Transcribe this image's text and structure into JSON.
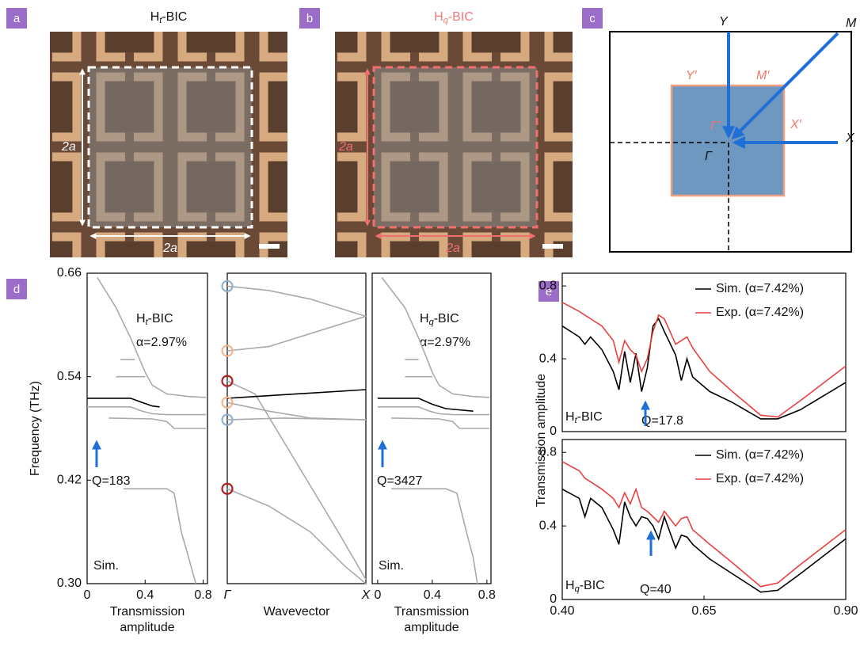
{
  "panels": {
    "labels": [
      "a",
      "b",
      "c",
      "d",
      "e"
    ],
    "a": {
      "title": [
        "H",
        "t",
        "-BIC"
      ],
      "dim_left": "2a",
      "dim_bottom": "2a"
    },
    "b": {
      "title": [
        "H",
        "q",
        "-BIC"
      ],
      "dim_left": "2a",
      "dim_bottom": "2a"
    },
    "c": {
      "Y": "Y",
      "M": "M",
      "Yp": "Y′",
      "Mp": "M′",
      "Gp": "Γ′",
      "Xp": "X′",
      "X": "X",
      "G": "Γ"
    }
  },
  "chart_data": [
    {
      "type": "line",
      "xlim": [
        0,
        0.83
      ],
      "ylim": [
        0.3,
        0.66
      ],
      "xticks": [
        0,
        0.4,
        0.8
      ],
      "yticks": [
        {
          "value": 0.3,
          "label": "0.30"
        },
        {
          "value": 0.42,
          "label": "0.42"
        },
        {
          "value": 0.54,
          "label": "0.54"
        },
        {
          "value": 0.66,
          "label": "0.66"
        }
      ],
      "ylabel": "Frequency (THz)",
      "xlabel": [
        "Transmission",
        "amplitude"
      ],
      "annotations": {
        "title": [
          "H",
          "t",
          "-BIC"
        ],
        "alpha": "α=2.97%",
        "q": "Q=183",
        "method": "Sim."
      },
      "series": [
        {
          "color": "#aaaaaa",
          "x": [
            0.07,
            0.2,
            0.3,
            0.4,
            0.45,
            0.55,
            0.7,
            0.82
          ],
          "values": [
            0.655,
            0.62,
            0.585,
            0.545,
            0.53,
            0.52,
            0.517,
            0.516
          ]
        },
        {
          "color": "#aaaaaa",
          "x": [
            0.23,
            0.33
          ],
          "values": [
            0.56,
            0.56
          ]
        },
        {
          "color": "#aaaaaa",
          "x": [
            0.2,
            0.4
          ],
          "values": [
            0.54,
            0.54
          ]
        },
        {
          "color": "#aaaaaa",
          "x": [
            0,
            0.3,
            0.38,
            0.45,
            0.55,
            0.82
          ],
          "values": [
            0.505,
            0.505,
            0.5,
            0.497,
            0.496,
            0.496
          ]
        },
        {
          "color": "#aaaaaa",
          "x": [
            0.15,
            0.45,
            0.55,
            0.6,
            0.82
          ],
          "values": [
            0.492,
            0.491,
            0.488,
            0.48,
            0.48
          ]
        },
        {
          "color": "#aaaaaa",
          "x": [
            0.25,
            0.55,
            0.6,
            0.65,
            0.7,
            0.75
          ],
          "values": [
            0.41,
            0.41,
            0.405,
            0.36,
            0.33,
            0.3
          ]
        },
        {
          "color": "#000000",
          "x": [
            0,
            0.3,
            0.38,
            0.45,
            0.5
          ],
          "values": [
            0.515,
            0.515,
            0.51,
            0.506,
            0.505
          ]
        }
      ]
    },
    {
      "type": "line",
      "xlim": [
        0,
        1
      ],
      "ylim": [
        0.3,
        0.66
      ],
      "xticks": [
        {
          "value": 0,
          "label": "Γ"
        },
        {
          "value": 1,
          "label": "X"
        }
      ],
      "xlabel": "Wavevector",
      "series": [
        {
          "color": "#aaaaaa",
          "x": [
            0,
            0.3,
            0.6,
            1
          ],
          "values": [
            0.645,
            0.64,
            0.63,
            0.61
          ]
        },
        {
          "color": "#aaaaaa",
          "x": [
            0,
            0.3,
            0.6,
            1
          ],
          "values": [
            0.57,
            0.575,
            0.59,
            0.61
          ]
        },
        {
          "color": "#aaaaaa",
          "x": [
            0,
            0.3,
            0.6,
            1
          ],
          "values": [
            0.51,
            0.5,
            0.492,
            0.49
          ]
        },
        {
          "color": "#aaaaaa",
          "x": [
            0,
            0.4,
            1
          ],
          "values": [
            0.49,
            0.492,
            0.49
          ]
        },
        {
          "color": "#aaaaaa",
          "x": [
            0,
            0.2,
            0.5,
            0.8,
            1
          ],
          "values": [
            0.535,
            0.52,
            0.44,
            0.36,
            0.305
          ]
        },
        {
          "color": "#aaaaaa",
          "x": [
            0,
            0.3,
            0.6,
            0.85,
            1
          ],
          "values": [
            0.41,
            0.39,
            0.36,
            0.32,
            0.3
          ]
        },
        {
          "color": "#000000",
          "x": [
            0,
            1
          ],
          "values": [
            0.515,
            0.525
          ]
        }
      ],
      "markers": {
        "x": [
          0,
          0,
          0,
          0,
          0,
          0
        ],
        "values": [
          0.645,
          0.57,
          0.535,
          0.51,
          0.49,
          0.41
        ],
        "colors": [
          "#8fb0d0",
          "#f2b48f",
          "#b01f1f",
          "#f2b48f",
          "#8fb0d0",
          "#b01f1f"
        ]
      }
    },
    {
      "type": "line",
      "xlim": [
        -0.04,
        0.83
      ],
      "ylim": [
        0.3,
        0.66
      ],
      "xticks": [
        0,
        0.4,
        0.8
      ],
      "xlabel": [
        "Transmission",
        "amplitude"
      ],
      "annotations": {
        "title": [
          "H",
          "q",
          "-BIC"
        ],
        "alpha": "α=2.97%",
        "q": "Q=3427",
        "method": "Sim."
      },
      "series": [
        {
          "color": "#aaaaaa",
          "x": [
            0.03,
            0.2,
            0.3,
            0.4,
            0.45,
            0.55,
            0.7,
            0.82
          ],
          "values": [
            0.655,
            0.62,
            0.585,
            0.545,
            0.53,
            0.52,
            0.517,
            0.516
          ]
        },
        {
          "color": "#aaaaaa",
          "x": [
            0.2,
            0.3
          ],
          "values": [
            0.56,
            0.56
          ]
        },
        {
          "color": "#aaaaaa",
          "x": [
            0.2,
            0.4
          ],
          "values": [
            0.54,
            0.54
          ]
        },
        {
          "color": "#aaaaaa",
          "x": [
            0,
            0.3,
            0.38,
            0.45,
            0.55,
            0.82
          ],
          "values": [
            0.505,
            0.505,
            0.5,
            0.497,
            0.496,
            0.496
          ]
        },
        {
          "color": "#aaaaaa",
          "x": [
            0.1,
            0.45,
            0.55,
            0.6,
            0.82
          ],
          "values": [
            0.492,
            0.491,
            0.488,
            0.48,
            0.48
          ]
        },
        {
          "color": "#aaaaaa",
          "x": [
            0.1,
            0.5,
            0.58,
            0.65,
            0.7,
            0.73
          ],
          "values": [
            0.41,
            0.41,
            0.405,
            0.36,
            0.33,
            0.3
          ]
        },
        {
          "color": "#000000",
          "x": [
            0,
            0.3,
            0.4,
            0.5,
            0.7
          ],
          "values": [
            0.515,
            0.515,
            0.508,
            0.503,
            0.5
          ]
        }
      ]
    },
    {
      "type": "line",
      "xlim": [
        0.4,
        0.9
      ],
      "ylim": [
        0,
        0.87
      ],
      "yticks": [
        0,
        0.4,
        0.8
      ],
      "ylabel": "Transmission amplitude",
      "legend": "upper right",
      "annotations": {
        "title": [
          "H",
          "t",
          "-BIC"
        ],
        "q": "Q=17.8"
      },
      "series": [
        {
          "name": "Sim. (α=7.42%)",
          "color": "#000000",
          "x": [
            0.4,
            0.43,
            0.44,
            0.45,
            0.47,
            0.49,
            0.5,
            0.51,
            0.52,
            0.53,
            0.54,
            0.55,
            0.56,
            0.57,
            0.58,
            0.6,
            0.61,
            0.62,
            0.63,
            0.66,
            0.7,
            0.75,
            0.78,
            0.82,
            0.9
          ],
          "values": [
            0.58,
            0.52,
            0.48,
            0.52,
            0.45,
            0.33,
            0.23,
            0.44,
            0.27,
            0.43,
            0.22,
            0.35,
            0.58,
            0.62,
            0.55,
            0.42,
            0.28,
            0.4,
            0.3,
            0.22,
            0.16,
            0.07,
            0.07,
            0.12,
            0.27
          ]
        },
        {
          "name": "Exp. (α=7.42%)",
          "color": "#e8423f",
          "x": [
            0.4,
            0.43,
            0.44,
            0.45,
            0.47,
            0.49,
            0.5,
            0.51,
            0.52,
            0.53,
            0.54,
            0.55,
            0.56,
            0.57,
            0.58,
            0.6,
            0.61,
            0.62,
            0.63,
            0.66,
            0.7,
            0.75,
            0.78,
            0.82,
            0.9
          ],
          "values": [
            0.71,
            0.66,
            0.64,
            0.62,
            0.58,
            0.5,
            0.38,
            0.5,
            0.45,
            0.42,
            0.33,
            0.4,
            0.55,
            0.64,
            0.62,
            0.48,
            0.5,
            0.52,
            0.46,
            0.33,
            0.22,
            0.09,
            0.08,
            0.17,
            0.36
          ]
        }
      ]
    },
    {
      "type": "line",
      "xlim": [
        0.4,
        0.9
      ],
      "ylim": [
        0,
        0.87
      ],
      "yticks": [
        0,
        0.4,
        0.8
      ],
      "xticks": [
        {
          "value": 0.4,
          "label": "0.40"
        },
        {
          "value": 0.65,
          "label": "0.65"
        },
        {
          "value": 0.9,
          "label": "0.90"
        }
      ],
      "legend": "upper right",
      "annotations": {
        "title": [
          "H",
          "q",
          "-BIC"
        ],
        "q": "Q=40"
      },
      "series": [
        {
          "name": "Sim. (α=7.42%)",
          "color": "#000000",
          "x": [
            0.4,
            0.43,
            0.44,
            0.45,
            0.47,
            0.49,
            0.5,
            0.51,
            0.52,
            0.53,
            0.54,
            0.55,
            0.56,
            0.57,
            0.58,
            0.6,
            0.61,
            0.62,
            0.63,
            0.66,
            0.7,
            0.75,
            0.78,
            0.82,
            0.9
          ],
          "values": [
            0.6,
            0.55,
            0.45,
            0.55,
            0.5,
            0.38,
            0.3,
            0.53,
            0.45,
            0.4,
            0.45,
            0.44,
            0.4,
            0.33,
            0.45,
            0.28,
            0.35,
            0.34,
            0.3,
            0.22,
            0.14,
            0.04,
            0.05,
            0.14,
            0.33
          ]
        },
        {
          "name": "Exp. (α=7.42%)",
          "color": "#e8423f",
          "x": [
            0.4,
            0.43,
            0.44,
            0.45,
            0.47,
            0.49,
            0.5,
            0.51,
            0.52,
            0.53,
            0.54,
            0.55,
            0.56,
            0.57,
            0.58,
            0.6,
            0.61,
            0.62,
            0.63,
            0.66,
            0.7,
            0.75,
            0.78,
            0.82,
            0.9
          ],
          "values": [
            0.75,
            0.7,
            0.66,
            0.64,
            0.6,
            0.55,
            0.5,
            0.58,
            0.52,
            0.6,
            0.5,
            0.48,
            0.45,
            0.42,
            0.48,
            0.4,
            0.44,
            0.45,
            0.38,
            0.3,
            0.2,
            0.07,
            0.09,
            0.19,
            0.38
          ]
        }
      ]
    }
  ]
}
